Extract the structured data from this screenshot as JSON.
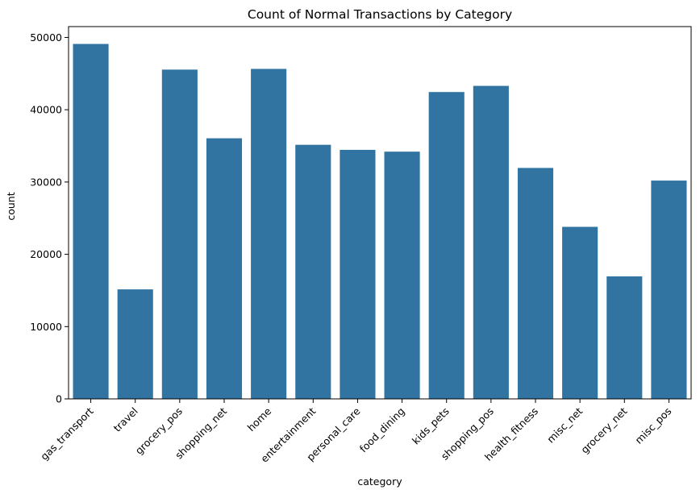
{
  "chart_data": {
    "type": "bar",
    "title": "Count of Normal Transactions by Category",
    "xlabel": "category",
    "ylabel": "count",
    "categories": [
      "gas_transport",
      "travel",
      "grocery_pos",
      "shopping_net",
      "home",
      "entertainment",
      "personal_care",
      "food_dining",
      "kids_pets",
      "shopping_pos",
      "health_fitness",
      "misc_net",
      "grocery_net",
      "misc_pos"
    ],
    "values": [
      49100,
      15150,
      45550,
      36050,
      45650,
      35150,
      34450,
      34200,
      42450,
      43300,
      31950,
      23800,
      16950,
      30200
    ],
    "ylim": [
      0,
      51500
    ],
    "yticks": [
      0,
      10000,
      20000,
      30000,
      40000,
      50000
    ],
    "bar_color": "#3274a1",
    "grid": false,
    "legend": "none"
  }
}
